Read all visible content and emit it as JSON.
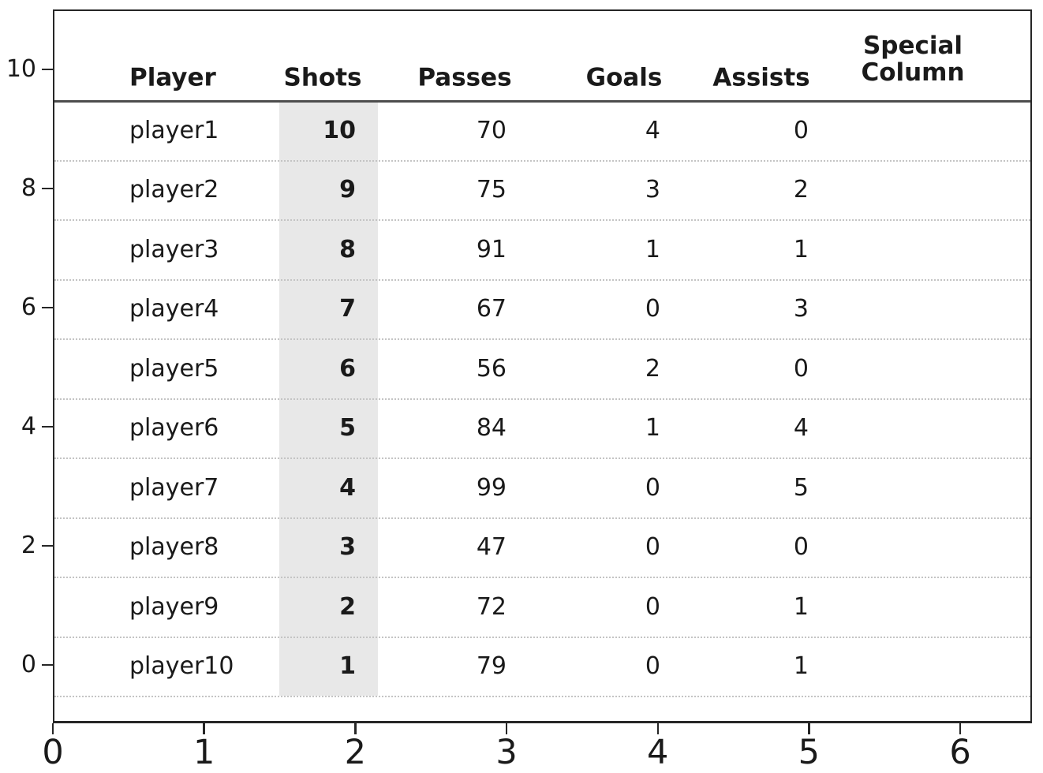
{
  "chart_data": {
    "type": "table",
    "title": "",
    "columns": [
      {
        "key": "player",
        "label": "Player"
      },
      {
        "key": "shots",
        "label": "Shots"
      },
      {
        "key": "passes",
        "label": "Passes"
      },
      {
        "key": "goals",
        "label": "Goals"
      },
      {
        "key": "assists",
        "label": "Assists"
      },
      {
        "key": "special",
        "label": "Special\nColumn"
      }
    ],
    "rows": [
      {
        "player": "player1",
        "shots": 10,
        "passes": 70,
        "goals": 4,
        "assists": 0,
        "special": ""
      },
      {
        "player": "player2",
        "shots": 9,
        "passes": 75,
        "goals": 3,
        "assists": 2,
        "special": ""
      },
      {
        "player": "player3",
        "shots": 8,
        "passes": 91,
        "goals": 1,
        "assists": 1,
        "special": ""
      },
      {
        "player": "player4",
        "shots": 7,
        "passes": 67,
        "goals": 0,
        "assists": 3,
        "special": ""
      },
      {
        "player": "player5",
        "shots": 6,
        "passes": 56,
        "goals": 2,
        "assists": 0,
        "special": ""
      },
      {
        "player": "player6",
        "shots": 5,
        "passes": 84,
        "goals": 1,
        "assists": 4,
        "special": ""
      },
      {
        "player": "player7",
        "shots": 4,
        "passes": 99,
        "goals": 0,
        "assists": 5,
        "special": ""
      },
      {
        "player": "player8",
        "shots": 3,
        "passes": 47,
        "goals": 0,
        "assists": 0,
        "special": ""
      },
      {
        "player": "player9",
        "shots": 2,
        "passes": 72,
        "goals": 0,
        "assists": 1,
        "special": ""
      },
      {
        "player": "player10",
        "shots": 1,
        "passes": 79,
        "goals": 0,
        "assists": 1,
        "special": ""
      }
    ],
    "highlighted_column": "Shots",
    "axes": {
      "x_ticks": [
        "0",
        "1",
        "2",
        "3",
        "4",
        "5",
        "6"
      ],
      "y_ticks": [
        "10",
        "8",
        "6",
        "4",
        "2",
        "0"
      ],
      "xlim": [
        0,
        6.47
      ],
      "ylim": [
        -1,
        11
      ],
      "grid": "dotted horizontal row separators"
    },
    "colors": {
      "highlight": "#e8e8e8",
      "text": "#1a1a1a",
      "border": "#262626",
      "header_rule": "#4d4d4d",
      "row_rule": "#c4c4c4"
    }
  }
}
